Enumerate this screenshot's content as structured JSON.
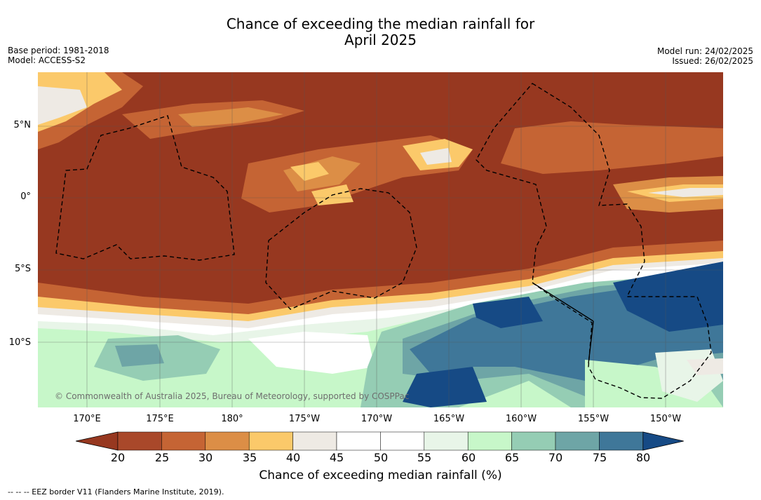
{
  "title": {
    "line1": "Chance of exceeding the median rainfall for",
    "line2": "April 2025"
  },
  "meta_left": {
    "base_period": "Base period: 1981-2018",
    "model": "Model: ACCESS-S2"
  },
  "meta_right": {
    "model_run": "Model run: 24/02/2025",
    "issued": "Issued: 26/02/2025"
  },
  "map": {
    "copyright": "© Commonwealth of Australia 2025, Bureau of Meteorology, supported by COSPPac",
    "lat_labels": [
      "5°N",
      "0°",
      "5°S",
      "10°S"
    ],
    "lon_labels": [
      "170°E",
      "175°E",
      "180°",
      "175°W",
      "170°W",
      "165°W",
      "160°W",
      "155°W",
      "150°W"
    ],
    "gridlines": true,
    "eez_border_style": "dashed"
  },
  "colorbar": {
    "title": "Chance of exceeding median rainfall (%)",
    "ticks": [
      "20",
      "25",
      "30",
      "35",
      "40",
      "45",
      "50",
      "55",
      "60",
      "65",
      "70",
      "75",
      "80"
    ],
    "colors": [
      "#973820",
      "#a9482a",
      "#c56434",
      "#dc8e46",
      "#fbc96a",
      "#eeeae4",
      "#ffffff",
      "#ffffff",
      "#e8f5e8",
      "#c7f7c9",
      "#95cdb4",
      "#6ea5a6",
      "#3f7799",
      "#164a85"
    ]
  },
  "legend_note": "--  --  -- EEZ border V11 (Flanders Marine Institute, 2019)."
}
